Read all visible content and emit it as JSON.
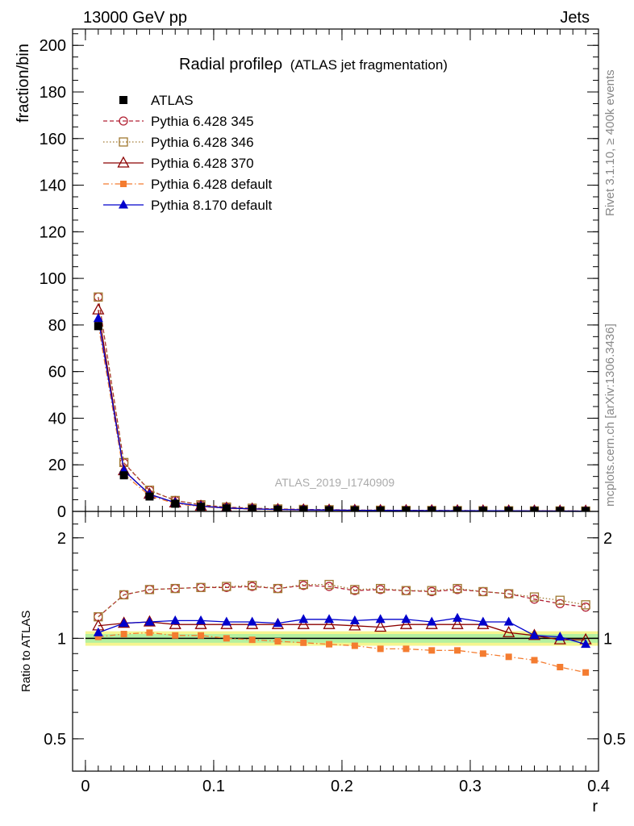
{
  "header": {
    "left": "13000 GeV pp",
    "right": "Jets"
  },
  "side_labels": {
    "rivet": "Rivet 3.1.10, ≥ 400k events",
    "source": "mcplots.cern.ch [arXiv:1306.3436]"
  },
  "chart_data": [
    {
      "type": "line",
      "title_main": "Radial profile",
      "title_symbol": "ρ",
      "title_sub": "(ATLAS jet fragmentation)",
      "ylabel": "fraction/bin",
      "watermark": "ATLAS_2019_I1740909",
      "xlim": [
        -0.01,
        0.4
      ],
      "ylim": [
        0,
        207
      ],
      "yticks": [
        0,
        20,
        40,
        60,
        80,
        100,
        120,
        140,
        160,
        180,
        200
      ],
      "x": [
        0.01,
        0.03,
        0.05,
        0.07,
        0.09,
        0.11,
        0.13,
        0.15,
        0.17,
        0.19,
        0.21,
        0.23,
        0.25,
        0.27,
        0.29,
        0.31,
        0.33,
        0.35,
        0.37,
        0.39
      ],
      "series": [
        {
          "name": "ATLAS",
          "color": "#000000",
          "marker": "square-filled",
          "line": "none",
          "values": [
            79.5,
            15.5,
            6.4,
            3.3,
            2.0,
            1.3,
            0.95,
            0.75,
            0.6,
            0.5,
            0.42,
            0.36,
            0.32,
            0.29,
            0.26,
            0.23,
            0.21,
            0.19,
            0.17,
            0.15
          ]
        },
        {
          "name": "Pythia 6.428 345",
          "color": "#b22234",
          "marker": "circle-open",
          "line": "dashed",
          "values": [
            92.0,
            20.8,
            9.0,
            4.7,
            2.8,
            1.85,
            1.37,
            1.04,
            0.86,
            0.72,
            0.58,
            0.51,
            0.45,
            0.41,
            0.37,
            0.32,
            0.29,
            0.25,
            0.22,
            0.19
          ]
        },
        {
          "name": "Pythia 6.428 346",
          "color": "#a07830",
          "marker": "square-open",
          "line": "dotted",
          "values": [
            92.0,
            21.0,
            9.1,
            4.7,
            2.85,
            1.86,
            1.38,
            1.06,
            0.87,
            0.73,
            0.59,
            0.52,
            0.45,
            0.41,
            0.37,
            0.32,
            0.29,
            0.25,
            0.22,
            0.19
          ]
        },
        {
          "name": "Pythia 6.428 370",
          "color": "#8b0000",
          "marker": "triangle-open",
          "line": "solid",
          "values": [
            86.5,
            17.5,
            7.4,
            3.7,
            2.25,
            1.45,
            1.06,
            0.84,
            0.67,
            0.56,
            0.46,
            0.4,
            0.36,
            0.32,
            0.29,
            0.25,
            0.22,
            0.195,
            0.17,
            0.15
          ]
        },
        {
          "name": "Pythia 6.428 default",
          "color": "#f47c30",
          "marker": "square-filled-small",
          "line": "dashdot",
          "values": [
            80.2,
            16.0,
            6.7,
            3.4,
            2.05,
            1.3,
            0.94,
            0.74,
            0.59,
            0.48,
            0.4,
            0.34,
            0.3,
            0.27,
            0.24,
            0.21,
            0.185,
            0.165,
            0.14,
            0.12
          ]
        },
        {
          "name": "Pythia 8.170 default",
          "color": "#0000cc",
          "marker": "triangle-filled",
          "line": "solid",
          "values": [
            82.8,
            17.6,
            7.3,
            3.8,
            2.3,
            1.47,
            1.07,
            0.84,
            0.69,
            0.58,
            0.48,
            0.41,
            0.37,
            0.33,
            0.3,
            0.26,
            0.24,
            0.195,
            0.17,
            0.144
          ]
        }
      ]
    },
    {
      "type": "line",
      "ylabel": "Ratio to ATLAS",
      "xlabel": "r",
      "ylim": [
        0.4,
        2.4
      ],
      "yscale": "log",
      "yticks": [
        0.5,
        1,
        2
      ],
      "xticks": [
        0,
        0.1,
        0.2,
        0.3,
        0.4
      ],
      "band_inner": 0.03,
      "band_outer": 0.05,
      "x": [
        0.01,
        0.03,
        0.05,
        0.07,
        0.09,
        0.11,
        0.13,
        0.15,
        0.17,
        0.19,
        0.21,
        0.23,
        0.25,
        0.27,
        0.29,
        0.31,
        0.33,
        0.35,
        0.37,
        0.39
      ],
      "series": [
        {
          "name": "Pythia 6.428 345",
          "values": [
            1.16,
            1.35,
            1.4,
            1.41,
            1.42,
            1.42,
            1.43,
            1.41,
            1.44,
            1.43,
            1.39,
            1.4,
            1.39,
            1.38,
            1.4,
            1.38,
            1.36,
            1.31,
            1.27,
            1.24
          ]
        },
        {
          "name": "Pythia 6.428 346",
          "values": [
            1.16,
            1.35,
            1.4,
            1.41,
            1.42,
            1.43,
            1.44,
            1.41,
            1.45,
            1.45,
            1.4,
            1.41,
            1.39,
            1.39,
            1.41,
            1.38,
            1.36,
            1.33,
            1.3,
            1.26
          ]
        },
        {
          "name": "Pythia 6.428 370",
          "values": [
            1.09,
            1.11,
            1.12,
            1.1,
            1.1,
            1.1,
            1.1,
            1.1,
            1.1,
            1.1,
            1.09,
            1.08,
            1.1,
            1.1,
            1.1,
            1.1,
            1.04,
            1.02,
            0.99,
            0.99
          ]
        },
        {
          "name": "Pythia 6.428 default",
          "values": [
            1.01,
            1.03,
            1.04,
            1.02,
            1.02,
            1.0,
            0.99,
            0.98,
            0.97,
            0.96,
            0.95,
            0.93,
            0.93,
            0.92,
            0.92,
            0.9,
            0.88,
            0.86,
            0.82,
            0.79
          ]
        },
        {
          "name": "Pythia 8.170 default",
          "values": [
            1.04,
            1.11,
            1.12,
            1.13,
            1.13,
            1.12,
            1.12,
            1.11,
            1.14,
            1.14,
            1.13,
            1.14,
            1.14,
            1.12,
            1.15,
            1.12,
            1.12,
            1.02,
            1.01,
            0.96
          ]
        }
      ]
    }
  ]
}
